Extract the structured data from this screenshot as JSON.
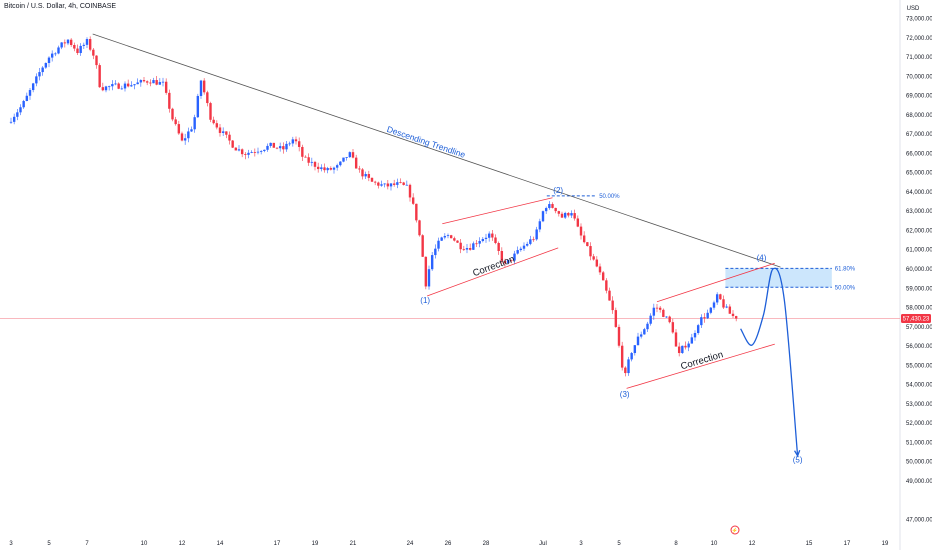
{
  "header": {
    "title": "Bitcoin / U.S. Dollar, 4h, COINBASE",
    "currency": "USD"
  },
  "colors": {
    "up": "#2962ff",
    "down": "#f23645",
    "trendline": "#555555",
    "annotation_blue": "#1e5fd8",
    "channel_red": "#f23645",
    "fib_zone": "#bbdefb",
    "price_line": "#f7a1a8"
  },
  "chart_data": {
    "type": "candlestick",
    "title": "Bitcoin / U.S. Dollar, 4h, COINBASE",
    "ylim": [
      46500,
      73500
    ],
    "y_axis_side": "right",
    "y_ticks": [
      {
        "value": 73000,
        "label": "73,000.00"
      },
      {
        "value": 72000,
        "label": "72,000.00"
      },
      {
        "value": 71000,
        "label": "71,000.00"
      },
      {
        "value": 70000,
        "label": "70,000.00"
      },
      {
        "value": 69000,
        "label": "69,000.00"
      },
      {
        "value": 68000,
        "label": "68,000.00"
      },
      {
        "value": 67000,
        "label": "67,000.00"
      },
      {
        "value": 66000,
        "label": "66,000.00"
      },
      {
        "value": 65000,
        "label": "65,000.00"
      },
      {
        "value": 64000,
        "label": "64,000.00"
      },
      {
        "value": 63000,
        "label": "63,000.00"
      },
      {
        "value": 62000,
        "label": "62,000.00"
      },
      {
        "value": 61000,
        "label": "61,000.00"
      },
      {
        "value": 60000,
        "label": "60,000.00"
      },
      {
        "value": 59000,
        "label": "59,000.00"
      },
      {
        "value": 58000,
        "label": "58,000.00"
      },
      {
        "value": 57000,
        "label": "57,000.00"
      },
      {
        "value": 56000,
        "label": "56,000.00"
      },
      {
        "value": 55000,
        "label": "55,000.00"
      },
      {
        "value": 54000,
        "label": "54,000.00"
      },
      {
        "value": 53000,
        "label": "53,000.00"
      },
      {
        "value": 52000,
        "label": "52,000.00"
      },
      {
        "value": 51000,
        "label": "51,000.00"
      },
      {
        "value": 50000,
        "label": "50,000.00"
      },
      {
        "value": 49000,
        "label": "49,000.00"
      },
      {
        "value": 47000,
        "label": "47,000.00"
      }
    ],
    "x_ticks": [
      {
        "label": "3",
        "day": 0
      },
      {
        "label": "5",
        "day": 2
      },
      {
        "label": "7",
        "day": 4
      },
      {
        "label": "10",
        "day": 7
      },
      {
        "label": "12",
        "day": 9
      },
      {
        "label": "14",
        "day": 11
      },
      {
        "label": "17",
        "day": 14
      },
      {
        "label": "19",
        "day": 16
      },
      {
        "label": "21",
        "day": 18
      },
      {
        "label": "24",
        "day": 21
      },
      {
        "label": "26",
        "day": 23
      },
      {
        "label": "28",
        "day": 25
      },
      {
        "label": "Jul",
        "day": 28
      },
      {
        "label": "3",
        "day": 30
      },
      {
        "label": "5",
        "day": 32
      },
      {
        "label": "8",
        "day": 35
      },
      {
        "label": "10",
        "day": 37
      },
      {
        "label": "12",
        "day": 39
      },
      {
        "label": "15",
        "day": 42
      },
      {
        "label": "17",
        "day": 44
      },
      {
        "label": "19",
        "day": 46
      }
    ],
    "price_path": [
      {
        "day": 0.0,
        "p": 67800
      },
      {
        "day": 0.6,
        "p": 68500
      },
      {
        "day": 1.2,
        "p": 69600
      },
      {
        "day": 1.6,
        "p": 70400
      },
      {
        "day": 2.0,
        "p": 71000
      },
      {
        "day": 2.5,
        "p": 71500
      },
      {
        "day": 3.0,
        "p": 71900
      },
      {
        "day": 3.5,
        "p": 71300
      },
      {
        "day": 4.0,
        "p": 71800
      },
      {
        "day": 4.4,
        "p": 71000
      },
      {
        "day": 4.7,
        "p": 69400
      },
      {
        "day": 5.5,
        "p": 69500
      },
      {
        "day": 6.5,
        "p": 69600
      },
      {
        "day": 7.3,
        "p": 69800
      },
      {
        "day": 8.0,
        "p": 69600
      },
      {
        "day": 8.5,
        "p": 67800
      },
      {
        "day": 9.0,
        "p": 66600
      },
      {
        "day": 9.6,
        "p": 67500
      },
      {
        "day": 10.0,
        "p": 69800
      },
      {
        "day": 10.5,
        "p": 67900
      },
      {
        "day": 11.0,
        "p": 67200
      },
      {
        "day": 11.8,
        "p": 66300
      },
      {
        "day": 12.3,
        "p": 66000
      },
      {
        "day": 13.0,
        "p": 66200
      },
      {
        "day": 13.7,
        "p": 66400
      },
      {
        "day": 14.3,
        "p": 66200
      },
      {
        "day": 14.9,
        "p": 66800
      },
      {
        "day": 15.4,
        "p": 65700
      },
      {
        "day": 16.0,
        "p": 65400
      },
      {
        "day": 16.6,
        "p": 65100
      },
      {
        "day": 17.2,
        "p": 65300
      },
      {
        "day": 17.8,
        "p": 66000
      },
      {
        "day": 18.3,
        "p": 65100
      },
      {
        "day": 19.0,
        "p": 64500
      },
      {
        "day": 19.7,
        "p": 64300
      },
      {
        "day": 20.4,
        "p": 64400
      },
      {
        "day": 20.9,
        "p": 64200
      },
      {
        "day": 21.3,
        "p": 62800
      },
      {
        "day": 21.6,
        "p": 61200
      },
      {
        "day": 21.85,
        "p": 59100
      },
      {
        "day": 22.1,
        "p": 60600
      },
      {
        "day": 22.6,
        "p": 61500
      },
      {
        "day": 23.1,
        "p": 61800
      },
      {
        "day": 23.6,
        "p": 61200
      },
      {
        "day": 24.1,
        "p": 61100
      },
      {
        "day": 24.6,
        "p": 61500
      },
      {
        "day": 25.2,
        "p": 61800
      },
      {
        "day": 25.7,
        "p": 60800
      },
      {
        "day": 26.0,
        "p": 60200
      },
      {
        "day": 26.5,
        "p": 60700
      },
      {
        "day": 27.0,
        "p": 61200
      },
      {
        "day": 27.6,
        "p": 61700
      },
      {
        "day": 28.1,
        "p": 63300
      },
      {
        "day": 28.6,
        "p": 63200
      },
      {
        "day": 29.0,
        "p": 62700
      },
      {
        "day": 29.5,
        "p": 63000
      },
      {
        "day": 29.9,
        "p": 61900
      },
      {
        "day": 30.4,
        "p": 60900
      },
      {
        "day": 30.9,
        "p": 60000
      },
      {
        "day": 31.3,
        "p": 58900
      },
      {
        "day": 31.7,
        "p": 57700
      },
      {
        "day": 32.1,
        "p": 55400
      },
      {
        "day": 32.3,
        "p": 54300
      },
      {
        "day": 32.6,
        "p": 55600
      },
      {
        "day": 33.0,
        "p": 56400
      },
      {
        "day": 33.5,
        "p": 57200
      },
      {
        "day": 33.9,
        "p": 58100
      },
      {
        "day": 34.3,
        "p": 57700
      },
      {
        "day": 34.8,
        "p": 57000
      },
      {
        "day": 35.1,
        "p": 55400
      },
      {
        "day": 35.4,
        "p": 56000
      },
      {
        "day": 35.8,
        "p": 56300
      },
      {
        "day": 36.2,
        "p": 57300
      },
      {
        "day": 36.8,
        "p": 57800
      },
      {
        "day": 37.2,
        "p": 58600
      },
      {
        "day": 37.5,
        "p": 58100
      },
      {
        "day": 37.9,
        "p": 57600
      },
      {
        "day": 38.2,
        "p": 57430
      }
    ],
    "current_price": {
      "value": 57430,
      "label": "57,430.23"
    },
    "trendline": {
      "start": {
        "day": 4.3,
        "p": 72200
      },
      "end": {
        "day": 40.5,
        "p": 60100
      },
      "label": "Descending Trendline"
    },
    "channels": [
      {
        "lower": [
          {
            "day": 21.9,
            "p": 58600
          },
          {
            "day": 28.8,
            "p": 61100
          }
        ],
        "upper": [
          {
            "day": 22.7,
            "p": 62350
          },
          {
            "day": 28.5,
            "p": 63700
          }
        ],
        "label": "Correction"
      },
      {
        "lower": [
          {
            "day": 32.4,
            "p": 53800
          },
          {
            "day": 40.2,
            "p": 56100
          }
        ],
        "upper": [
          {
            "day": 34.0,
            "p": 58300
          },
          {
            "day": 40.2,
            "p": 60300
          }
        ],
        "label": "Correction"
      }
    ],
    "wave_labels": [
      {
        "text": "(1)",
        "day": 21.8,
        "p": 58400
      },
      {
        "text": "(2)",
        "day": 28.8,
        "p": 64100
      },
      {
        "text": "(3)",
        "day": 32.3,
        "p": 53500
      },
      {
        "text": "(4)",
        "day": 39.5,
        "p": 60600
      },
      {
        "text": "(5)",
        "day": 41.4,
        "p": 50100
      }
    ],
    "fib_levels": [
      {
        "label": "50.00%",
        "value": 63800,
        "day_start": 28.2,
        "day_end": 30.8
      },
      {
        "label": "61.80%",
        "value": 60030,
        "day_start": 37.6,
        "day_end": 43.2
      },
      {
        "label": "50.00%",
        "value": 59050,
        "day_start": 37.6,
        "day_end": 43.2
      }
    ],
    "projection": [
      {
        "day": 38.4,
        "p": 56900
      },
      {
        "day": 39.0,
        "p": 56050
      },
      {
        "day": 39.6,
        "p": 57600
      },
      {
        "day": 40.1,
        "p": 60000
      },
      {
        "day": 40.7,
        "p": 58400
      },
      {
        "day": 41.4,
        "p": 50300
      }
    ]
  }
}
